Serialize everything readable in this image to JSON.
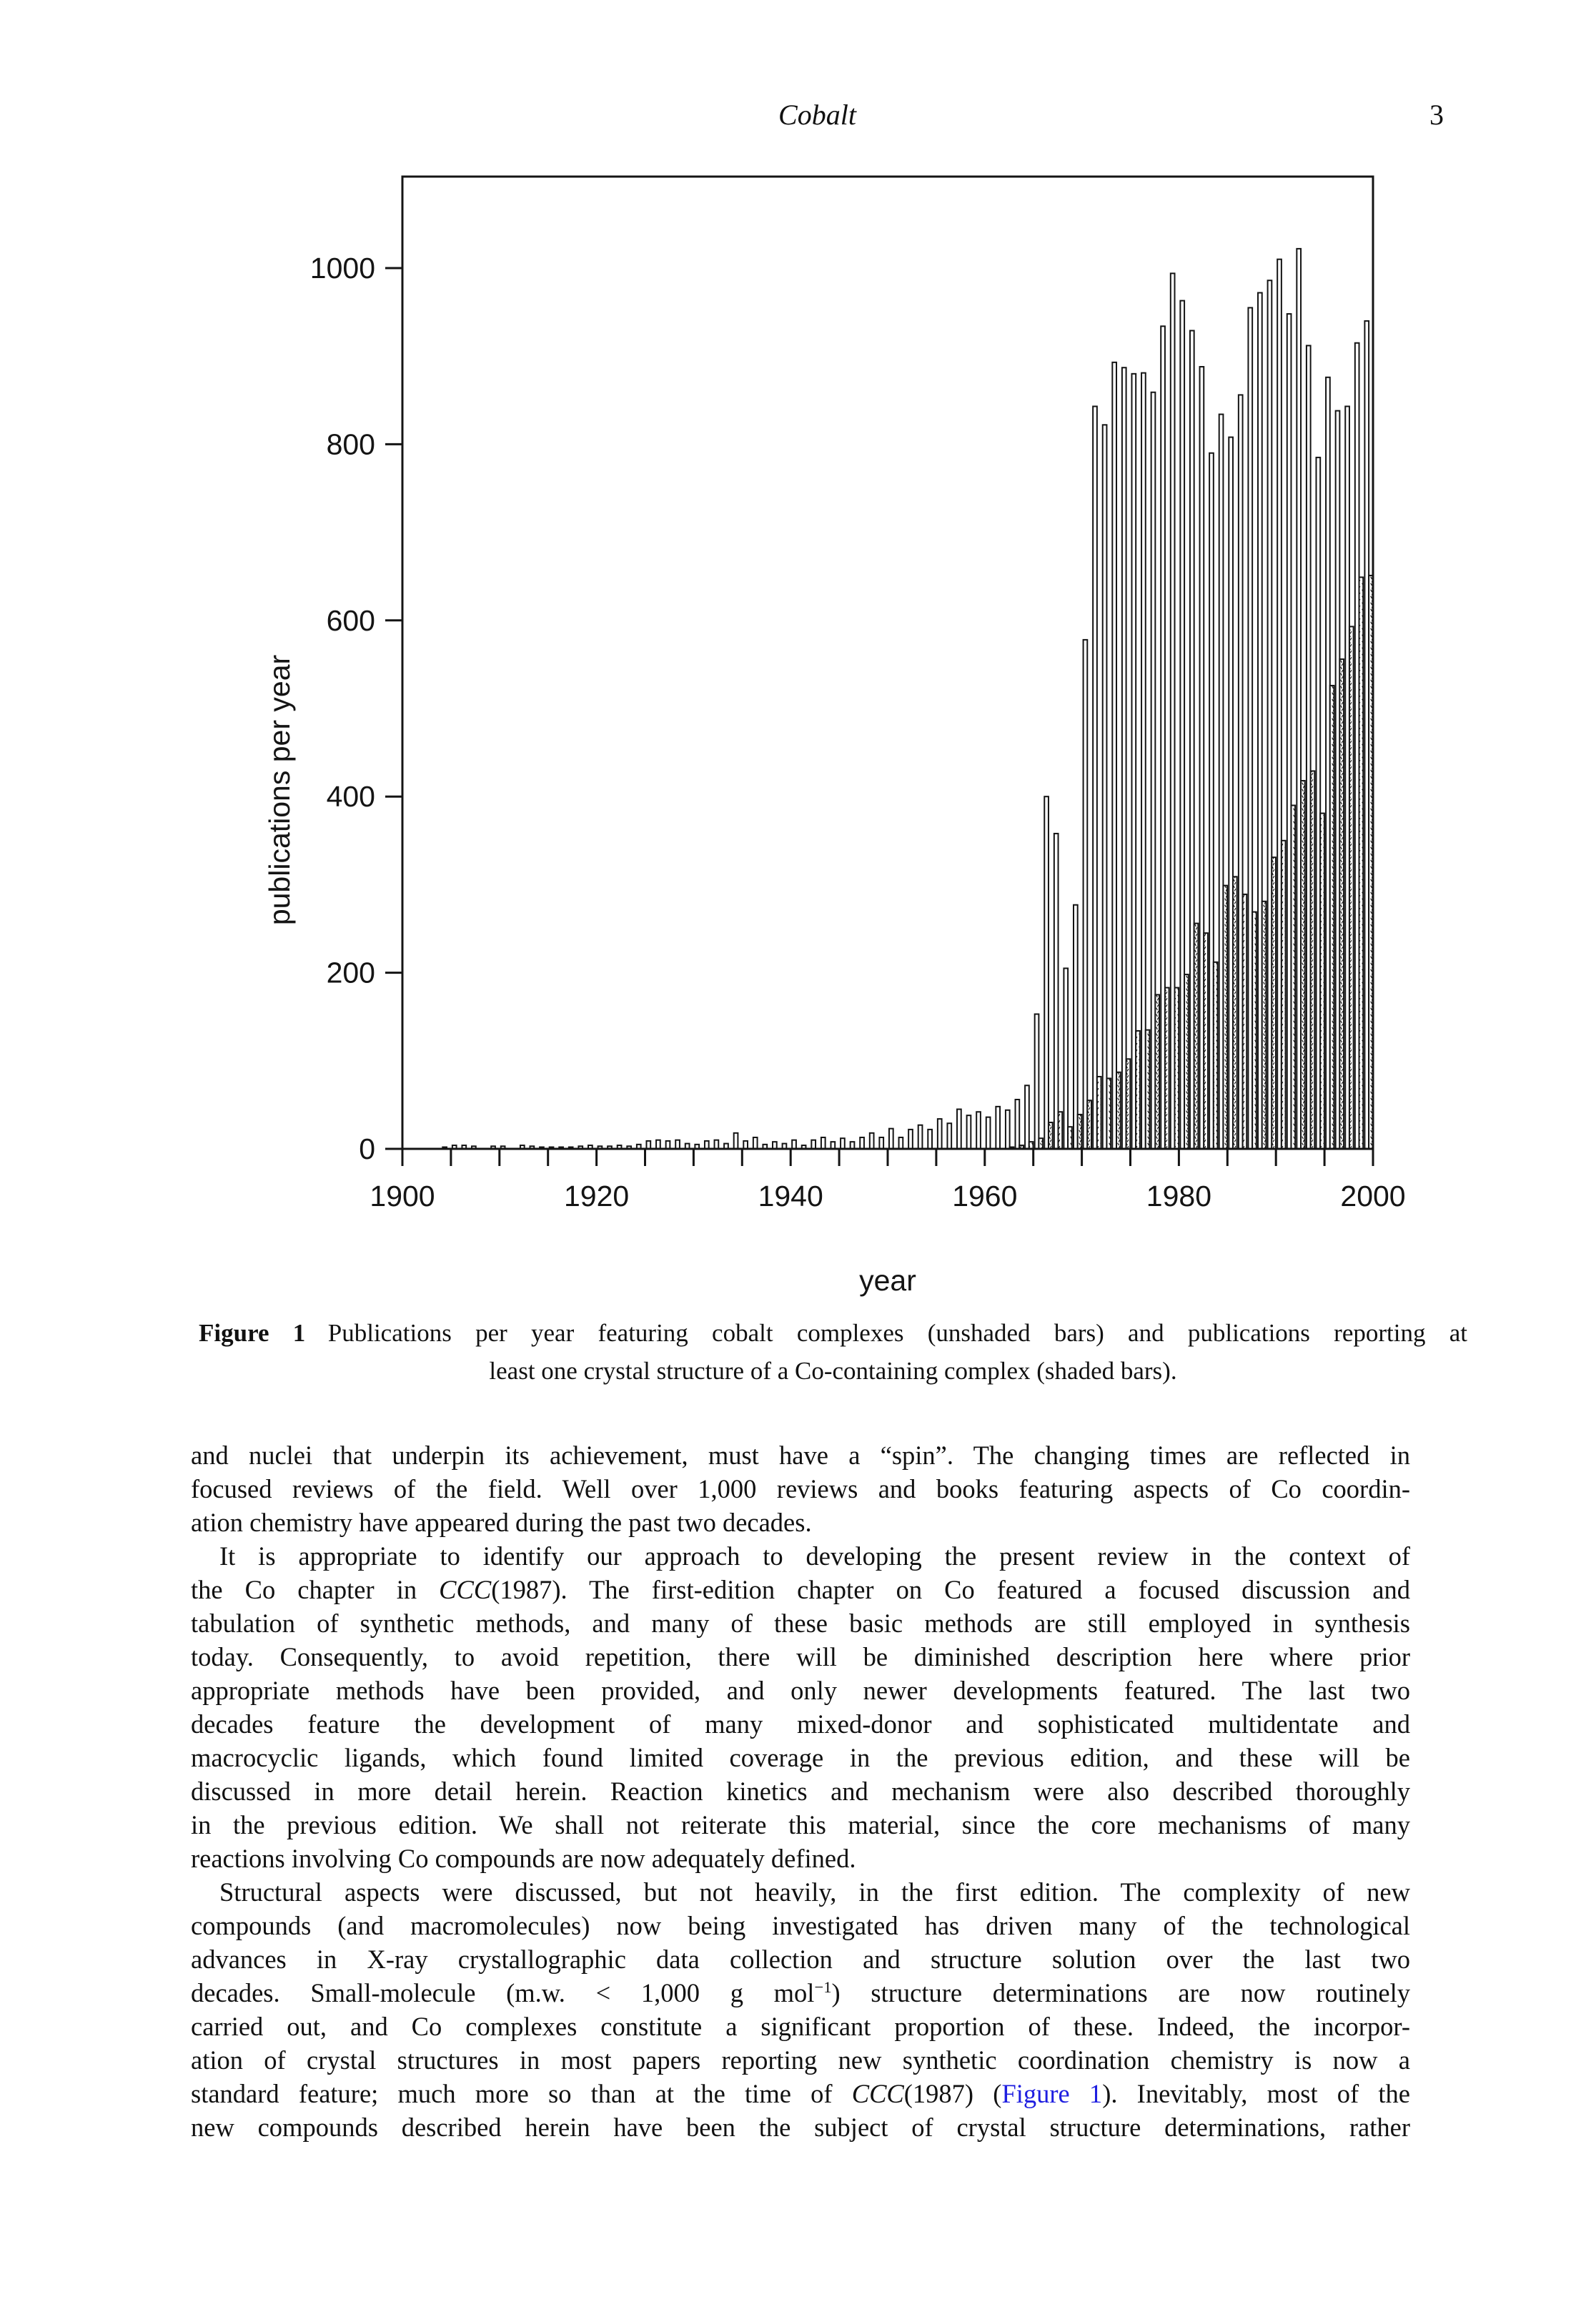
{
  "page": {
    "header_title": "Cobalt",
    "page_number": "3"
  },
  "colors": {
    "link_blue": "#1e1ee0",
    "ink": "#141414"
  },
  "chart_data": {
    "type": "bar",
    "title": "",
    "xlabel": "year",
    "ylabel": "publications per year",
    "grid": false,
    "legend_position": "none",
    "x_start": 1900,
    "x_end": 2000,
    "x_major_ticks": [
      1900,
      1920,
      1940,
      1960,
      1980,
      2000
    ],
    "x_minor_tick_step": 5,
    "ylim": [
      0,
      1100
    ],
    "yticks": [
      0,
      200,
      400,
      600,
      800,
      1000
    ],
    "bar_style_note": "one unshaded and one shaded bar per year, side by side",
    "series": [
      {
        "name": "publications per year featuring cobalt complexes (unshaded bars)",
        "fill": "white",
        "values": [
          0,
          0,
          0,
          0,
          0,
          2,
          4,
          4,
          3,
          0,
          3,
          3,
          0,
          4,
          3,
          2,
          2,
          2,
          2,
          3,
          4,
          3,
          3,
          4,
          3,
          5,
          9,
          10,
          9,
          10,
          6,
          5,
          9,
          10,
          6,
          18,
          9,
          13,
          5,
          8,
          6,
          10,
          4,
          10,
          13,
          8,
          12,
          8,
          13,
          18,
          13,
          23,
          13,
          22,
          27,
          22,
          34,
          29,
          45,
          38,
          42,
          36,
          48,
          44,
          56,
          72,
          153,
          400,
          358,
          205,
          277,
          578,
          843,
          822,
          893,
          887,
          880,
          881,
          859,
          934,
          994,
          963,
          929,
          888,
          790,
          834,
          808,
          856,
          955,
          972,
          986,
          1010,
          948,
          1022,
          912,
          785,
          876,
          838,
          843,
          915,
          940
        ]
      },
      {
        "name": "publications reporting at least one crystal structure of a Co-containing complex (shaded bars)",
        "fill": "hatch",
        "values": [
          0,
          0,
          0,
          0,
          0,
          0,
          0,
          0,
          0,
          0,
          0,
          0,
          0,
          0,
          0,
          0,
          0,
          0,
          0,
          0,
          0,
          0,
          0,
          0,
          0,
          0,
          0,
          0,
          0,
          0,
          0,
          0,
          0,
          0,
          0,
          0,
          0,
          0,
          0,
          0,
          0,
          0,
          0,
          0,
          0,
          0,
          0,
          0,
          0,
          0,
          0,
          0,
          0,
          0,
          0,
          0,
          0,
          0,
          0,
          0,
          0,
          0,
          0,
          2,
          4,
          8,
          12,
          30,
          42,
          25,
          39,
          55,
          82,
          80,
          87,
          102,
          134,
          135,
          175,
          183,
          183,
          198,
          256,
          245,
          212,
          299,
          309,
          289,
          269,
          281,
          331,
          350,
          390,
          418,
          429,
          381,
          526,
          556,
          593,
          649,
          651
        ]
      }
    ]
  },
  "caption": {
    "label": "Figure 1",
    "line1": "Publications per year featuring cobalt complexes (unshaded bars) and publications reporting at",
    "line2": "least one crystal structure of a Co-containing complex (shaded bars)."
  },
  "body": {
    "paragraphs": [
      {
        "lines": [
          {
            "seg": [
              {
                "t": "and nuclei that underpin its achievement, must have a “spin”. The changing times are reflected in"
              }
            ]
          },
          {
            "seg": [
              {
                "t": "focused reviews of the field. Well over 1,000 reviews and books featuring aspects of Co coordin-"
              }
            ]
          },
          {
            "jl": false,
            "seg": [
              {
                "t": "ation chemistry have appeared during the past two decades."
              }
            ]
          }
        ]
      },
      {
        "lines": [
          {
            "indent": true,
            "seg": [
              {
                "t": "It is appropriate to identify our approach to developing the present review in the context of"
              }
            ]
          },
          {
            "seg": [
              {
                "t": "the Co chapter in "
              },
              {
                "t": "CCC",
                "s": "i"
              },
              {
                "t": "(1987). The first-edition chapter on Co featured a focused discussion and"
              }
            ]
          },
          {
            "seg": [
              {
                "t": "tabulation of synthetic methods, and many of these basic methods are still employed in synthesis"
              }
            ]
          },
          {
            "seg": [
              {
                "t": "today. Consequently, to avoid repetition, there will be diminished description here where prior"
              }
            ]
          },
          {
            "seg": [
              {
                "t": "appropriate methods have been provided, and only newer developments featured. The last two"
              }
            ]
          },
          {
            "seg": [
              {
                "t": "decades feature the development of many mixed-donor and sophisticated multidentate and"
              }
            ]
          },
          {
            "seg": [
              {
                "t": "macrocyclic ligands, which found limited coverage in the previous edition, and these will be"
              }
            ]
          },
          {
            "seg": [
              {
                "t": "discussed in more detail herein. Reaction kinetics and mechanism were also described thoroughly"
              }
            ]
          },
          {
            "seg": [
              {
                "t": "in the previous edition. We shall not reiterate this material, since the core mechanisms of many"
              }
            ]
          },
          {
            "jl": false,
            "seg": [
              {
                "t": "reactions involving Co compounds are now adequately defined."
              }
            ]
          }
        ]
      },
      {
        "lines": [
          {
            "indent": true,
            "seg": [
              {
                "t": "Structural aspects were discussed, but not heavily, in the first edition. The complexity of new"
              }
            ]
          },
          {
            "seg": [
              {
                "t": "compounds (and macromolecules) now being investigated has driven many of the technological"
              }
            ]
          },
          {
            "seg": [
              {
                "t": "advances in X-ray crystallographic data collection and structure solution over the last two"
              }
            ]
          },
          {
            "seg": [
              {
                "t": "decades. Small-molecule (m.w. < 1,000 g mol"
              },
              {
                "t": "−1",
                "s": "sup"
              },
              {
                "t": ") structure determinations are now routinely"
              }
            ]
          },
          {
            "seg": [
              {
                "t": "carried out, and Co complexes constitute a significant proportion of these. Indeed, the incorpor-"
              }
            ]
          },
          {
            "seg": [
              {
                "t": "ation of crystal structures in most papers reporting new synthetic coordination chemistry is now a"
              }
            ]
          },
          {
            "seg": [
              {
                "t": "standard feature; much more so than at the time of "
              },
              {
                "t": "CCC",
                "s": "i"
              },
              {
                "t": "(1987) ("
              },
              {
                "t": "Figure 1",
                "s": "link"
              },
              {
                "t": "). Inevitably, most of the"
              }
            ]
          },
          {
            "seg": [
              {
                "t": "new compounds described herein have been the subject of crystal structure determinations, rather"
              }
            ]
          }
        ]
      }
    ]
  }
}
